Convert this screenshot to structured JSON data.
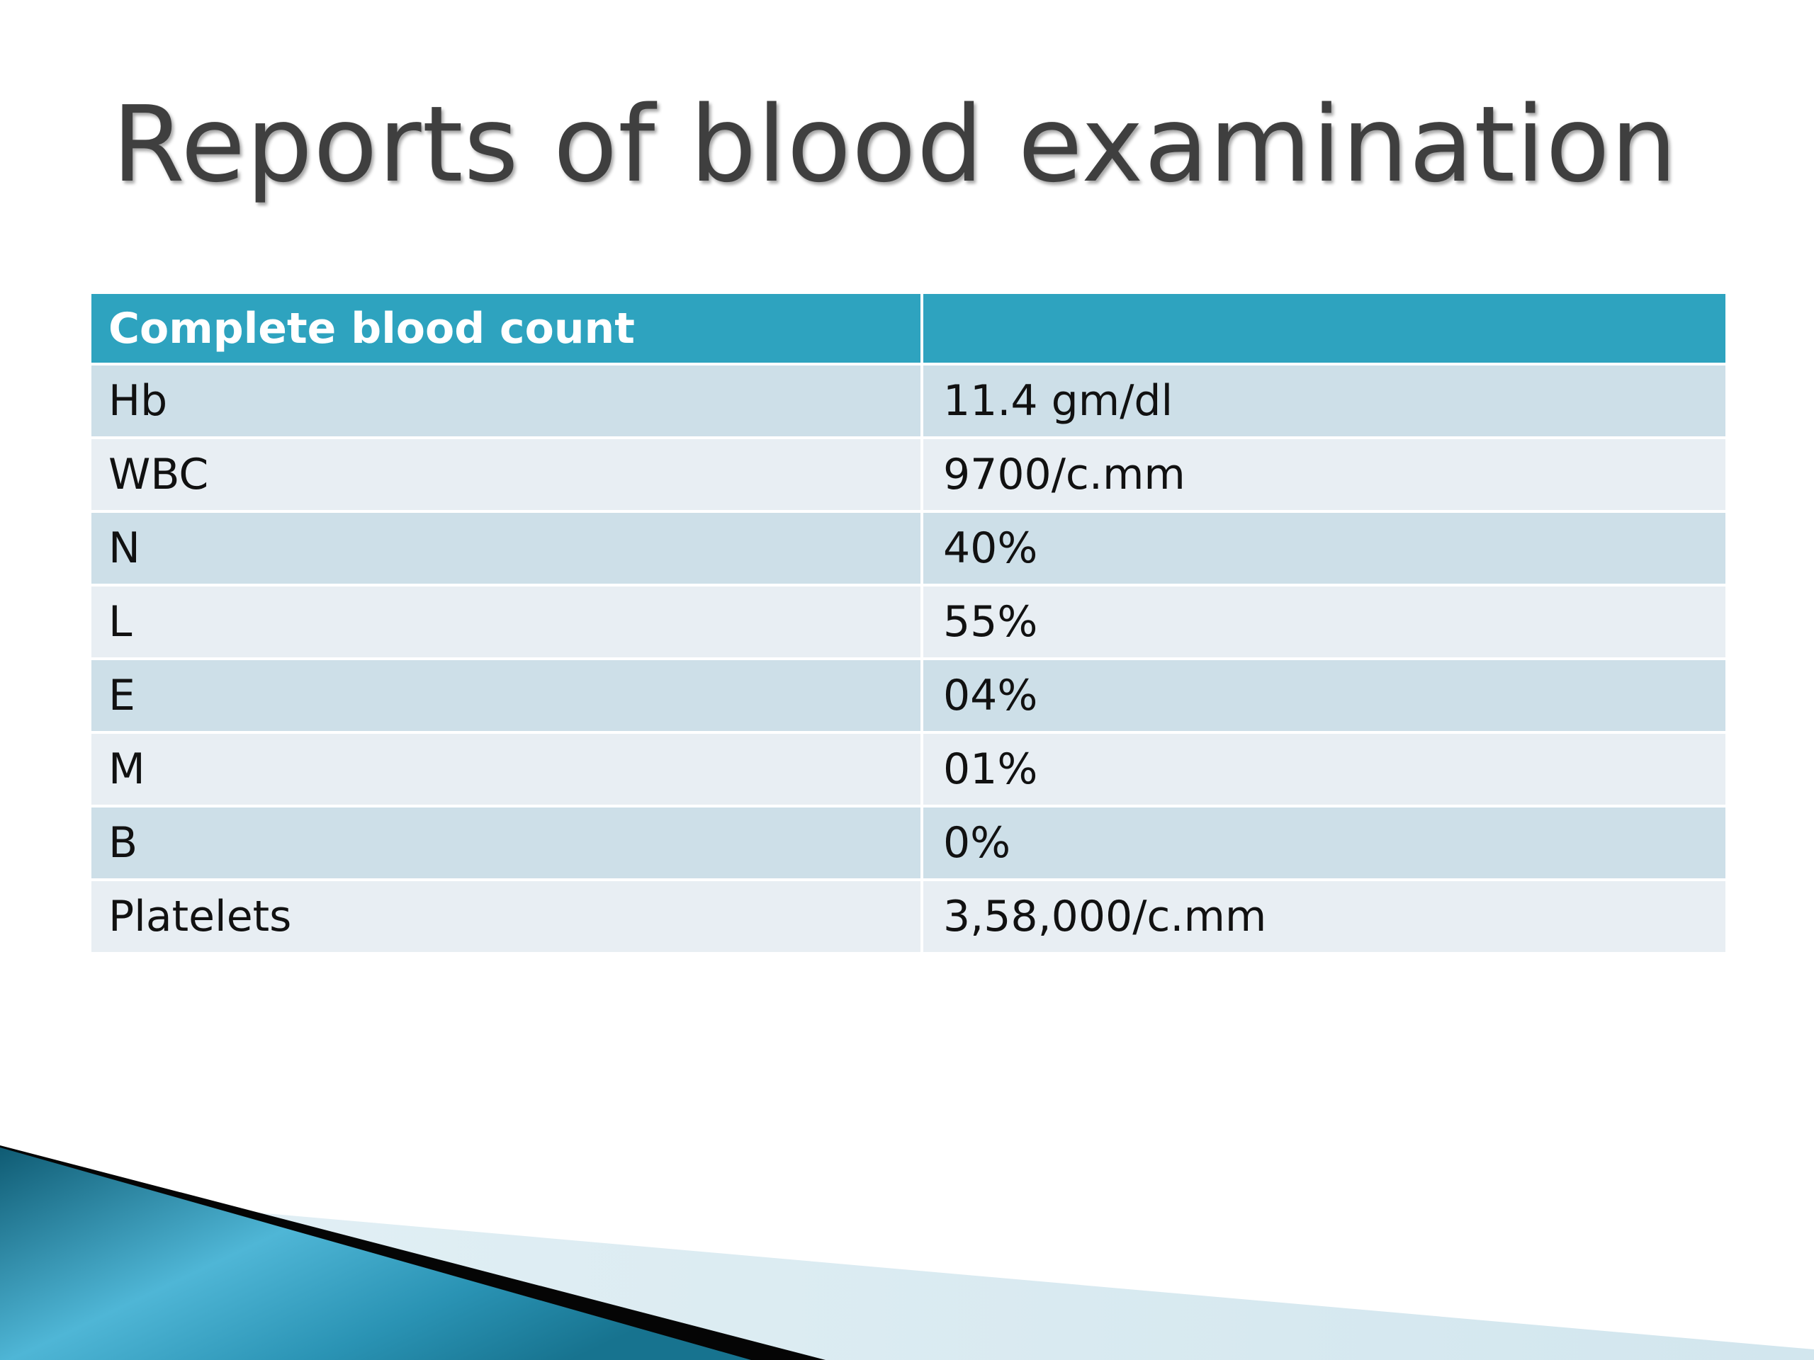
{
  "slide": {
    "title": "Reports of blood examination"
  },
  "table": {
    "header": [
      "Complete blood count",
      ""
    ],
    "rows": [
      [
        "Hb",
        "11.4 gm/dl"
      ],
      [
        "WBC",
        "9700/c.mm"
      ],
      [
        "N",
        "40%"
      ],
      [
        "L",
        "55%"
      ],
      [
        "E",
        "04%"
      ],
      [
        "M",
        "01%"
      ],
      [
        "B",
        "0%"
      ],
      [
        "Platelets",
        "3,58,000/c.mm"
      ]
    ]
  },
  "colors": {
    "title_text": "#3f3f3f",
    "header_fill": "#2ea3bf",
    "row_band_dark": "#cddfe8",
    "row_band_light": "#e8eef3",
    "accent_teal": "#1d6f8a"
  }
}
